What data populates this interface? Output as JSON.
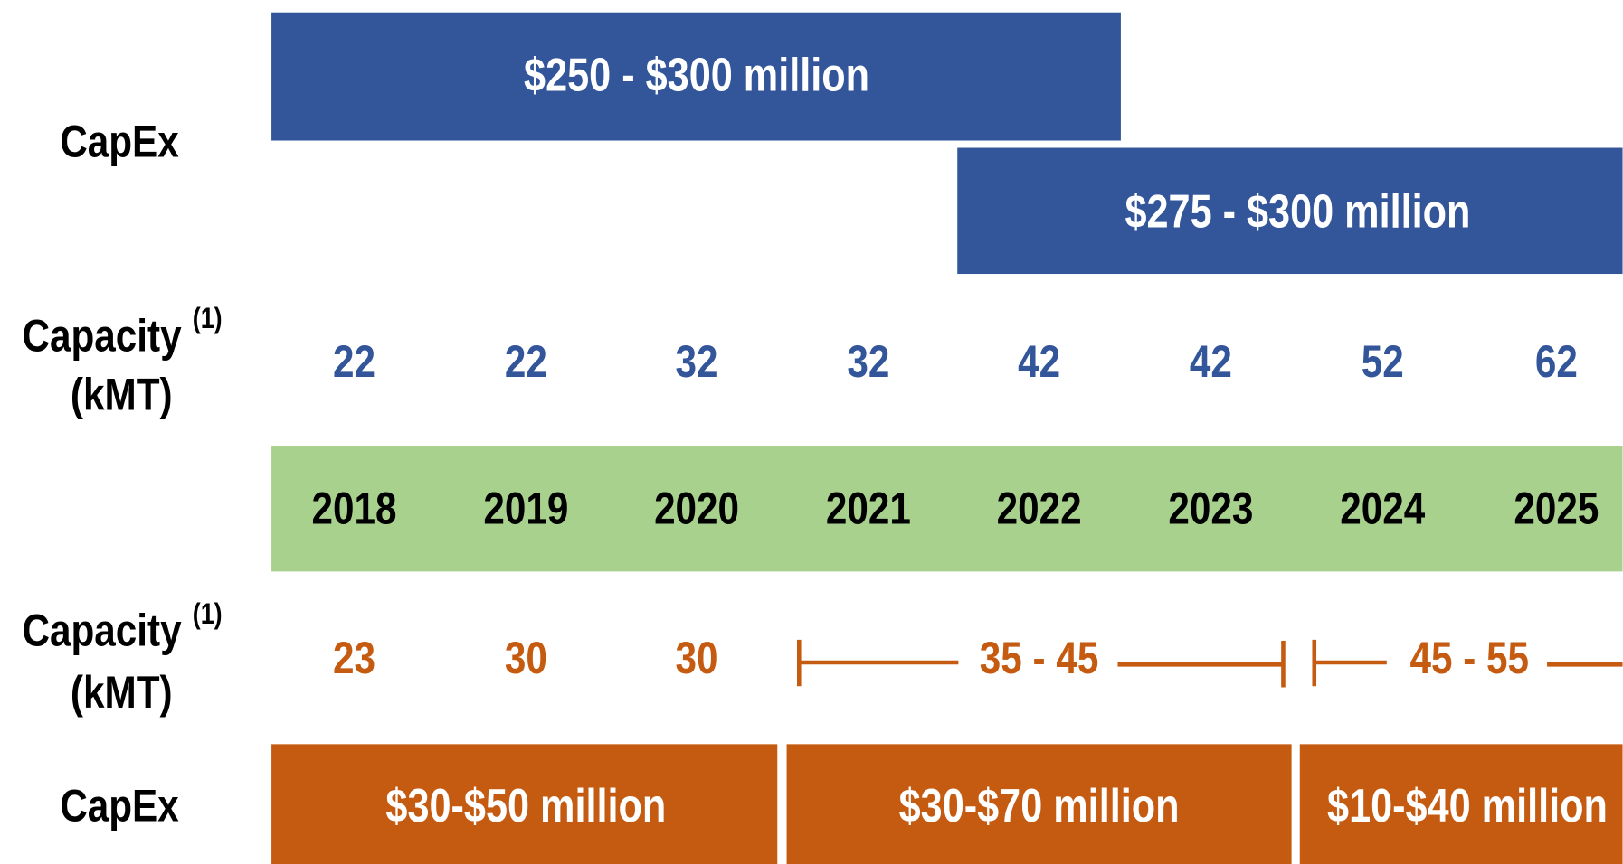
{
  "top": {
    "capex_label": "CapEx",
    "capex_bars": [
      "$250 - $300 million",
      "$275 - $300 million"
    ],
    "capacity_label": "Capacity",
    "capacity_note": "(1)",
    "capacity_unit": "(kMT)",
    "capacity_values": [
      22,
      22,
      32,
      32,
      42,
      42,
      52,
      62
    ]
  },
  "years": [
    2018,
    2019,
    2020,
    2021,
    2022,
    2023,
    2024,
    2025
  ],
  "bottom": {
    "capacity_label": "Capacity",
    "capacity_note": "(1)",
    "capacity_unit": "(kMT)",
    "capacity_values": [
      23,
      30,
      30,
      "35 - 45",
      "45 - 55"
    ],
    "capex_label": "CapEx",
    "capex_bars": [
      "$30-$50 million",
      "$30-$70 million",
      "$10-$40 million"
    ]
  }
}
